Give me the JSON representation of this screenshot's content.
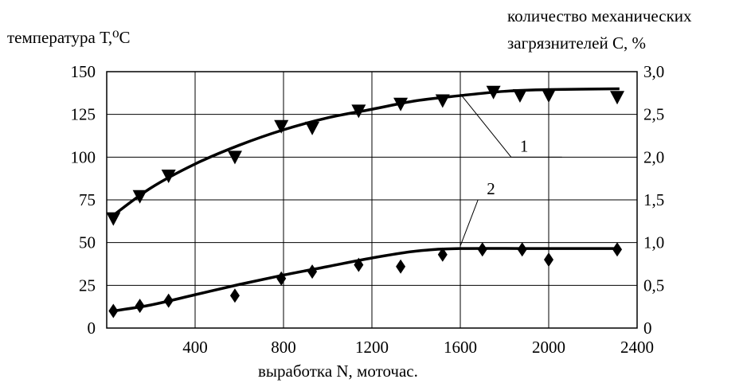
{
  "chart_data": {
    "type": "scatter",
    "xlabel": "выработка N, моточас.",
    "ylabel_left": "температура Т,⁰С",
    "ylabel_right_line1": "количество механических",
    "ylabel_right_line2": "загрязнителей С, %",
    "xlim": [
      0,
      2400
    ],
    "ylim_left": [
      0,
      150
    ],
    "ylim_right": [
      0,
      3.0
    ],
    "x_ticks": [
      "400",
      "800",
      "1200",
      "1600",
      "2000",
      "2400"
    ],
    "x_tick_values": [
      400,
      800,
      1200,
      1600,
      2000,
      2400
    ],
    "y_left_ticks": [
      "0",
      "25",
      "50",
      "75",
      "100",
      "125",
      "150"
    ],
    "y_left_tick_values": [
      0,
      25,
      50,
      75,
      100,
      125,
      150
    ],
    "y_right_ticks": [
      "0",
      "0,5",
      "1,0",
      "1,5",
      "2,0",
      "2,5",
      "3,0"
    ],
    "grid": true,
    "series": [
      {
        "name": "1",
        "marker": "triangle-down",
        "axis": "left",
        "points": [
          [
            30,
            64
          ],
          [
            150,
            77
          ],
          [
            280,
            89
          ],
          [
            580,
            100
          ],
          [
            790,
            118
          ],
          [
            930,
            117
          ],
          [
            1140,
            127
          ],
          [
            1330,
            131
          ],
          [
            1520,
            133
          ],
          [
            1750,
            138
          ],
          [
            1870,
            136
          ],
          [
            2000,
            136
          ],
          [
            2310,
            135
          ]
        ],
        "curve": [
          [
            30,
            66
          ],
          [
            200,
            82
          ],
          [
            400,
            96
          ],
          [
            600,
            107
          ],
          [
            800,
            116
          ],
          [
            1000,
            123
          ],
          [
            1200,
            128
          ],
          [
            1400,
            133
          ],
          [
            1600,
            136
          ],
          [
            1800,
            138.5
          ],
          [
            2000,
            139.5
          ],
          [
            2320,
            140
          ]
        ]
      },
      {
        "name": "2",
        "marker": "diamond",
        "axis": "left",
        "points": [
          [
            30,
            10
          ],
          [
            150,
            13
          ],
          [
            280,
            16
          ],
          [
            580,
            19
          ],
          [
            790,
            29
          ],
          [
            930,
            33
          ],
          [
            1140,
            37
          ],
          [
            1330,
            36
          ],
          [
            1520,
            43
          ],
          [
            1700,
            46
          ],
          [
            1880,
            46
          ],
          [
            2000,
            40
          ],
          [
            2310,
            46
          ]
        ],
        "curve": [
          [
            30,
            10
          ],
          [
            200,
            13.5
          ],
          [
            400,
            19.5
          ],
          [
            600,
            25.5
          ],
          [
            800,
            31
          ],
          [
            1000,
            36
          ],
          [
            1200,
            41
          ],
          [
            1400,
            45
          ],
          [
            1600,
            46.5
          ],
          [
            2000,
            46.5
          ],
          [
            2320,
            46.5
          ]
        ]
      }
    ],
    "annotations": [
      "1",
      "2"
    ]
  }
}
